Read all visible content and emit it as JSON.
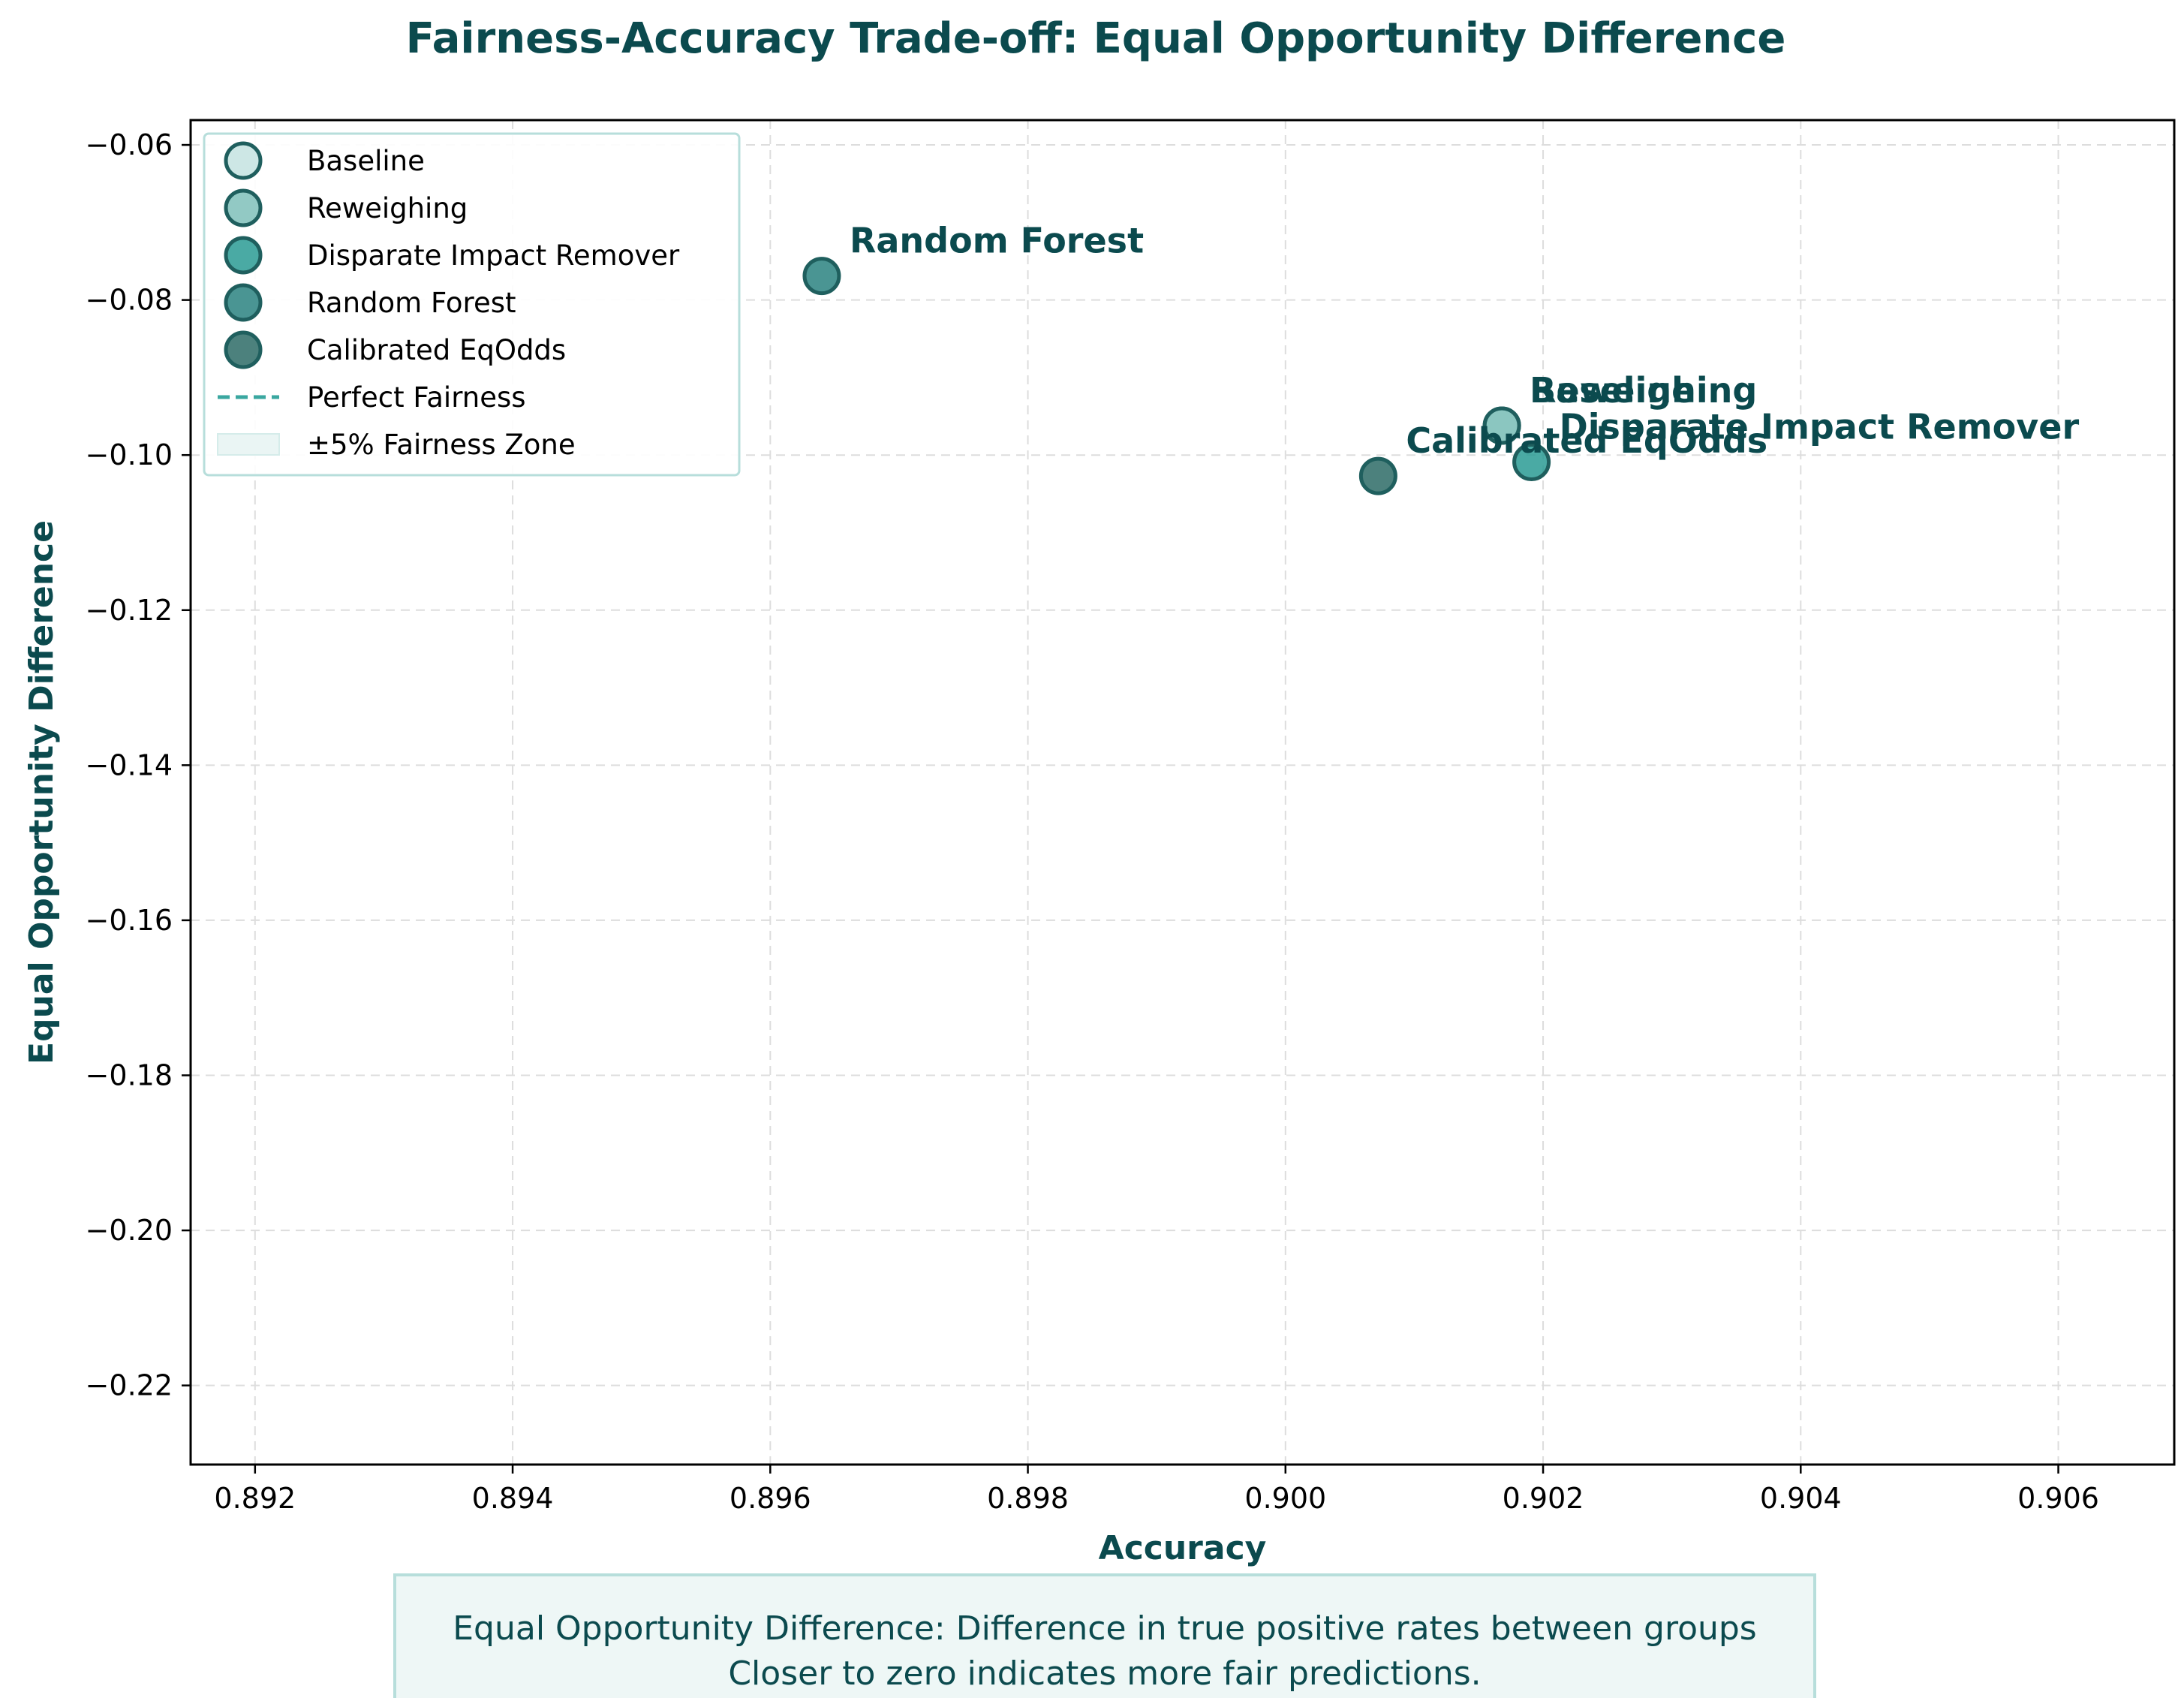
{
  "chart_data": {
    "type": "scatter",
    "title": "Fairness-Accuracy Trade-off: Equal Opportunity Difference",
    "xlabel": "Accuracy",
    "ylabel": "Equal Opportunity Difference",
    "xlim": [
      0.8915,
      0.9069
    ],
    "ylim": [
      -0.2302,
      -0.0568
    ],
    "xticks": [
      0.892,
      0.894,
      0.896,
      0.898,
      0.9,
      0.902,
      0.904,
      0.906
    ],
    "xtick_labels": [
      "0.892",
      "0.894",
      "0.896",
      "0.898",
      "0.900",
      "0.902",
      "0.904",
      "0.906"
    ],
    "yticks": [
      -0.06,
      -0.08,
      -0.1,
      -0.12,
      -0.14,
      -0.16,
      -0.18,
      -0.2,
      -0.22
    ],
    "ytick_labels": [
      "−0.06",
      "−0.08",
      "−0.10",
      "−0.12",
      "−0.14",
      "−0.16",
      "−0.18",
      "−0.20",
      "−0.22"
    ],
    "grid": true,
    "legend_position": "upper-left",
    "series": [
      {
        "name": "Baseline",
        "x": 0.90168,
        "y": -0.0962,
        "label": "Baseline",
        "color": "#c4e3e0"
      },
      {
        "name": "Reweighing",
        "x": 0.90168,
        "y": -0.0962,
        "label": "Reweighing",
        "color": "#7fbfba"
      },
      {
        "name": "Disparate Impact Remover",
        "x": 0.90191,
        "y": -0.1009,
        "label": "Disparate Impact Remover",
        "color": "#2a9b94"
      },
      {
        "name": "Random Forest",
        "x": 0.8964,
        "y": -0.0769,
        "label": "Random Forest",
        "color": "#2a8380"
      },
      {
        "name": "Calibrated EqOdds",
        "x": 0.90072,
        "y": -0.1027,
        "label": "Calibrated EqOdds",
        "color": "#2d6b66"
      }
    ],
    "legend_extra": [
      {
        "label": "Perfect Fairness",
        "kind": "dashed-line",
        "color": "#3aa7a0"
      },
      {
        "label": "±5% Fairness Zone",
        "kind": "patch",
        "color": "#eaf5f4"
      }
    ],
    "colors": {
      "title": "#0b4a4e",
      "edge": "#1f5f5e",
      "grid": "#dddddd"
    }
  },
  "caption": {
    "line1": "Equal Opportunity Difference: Difference in true positive rates between groups",
    "line2": "Closer to zero indicates more fair predictions."
  }
}
